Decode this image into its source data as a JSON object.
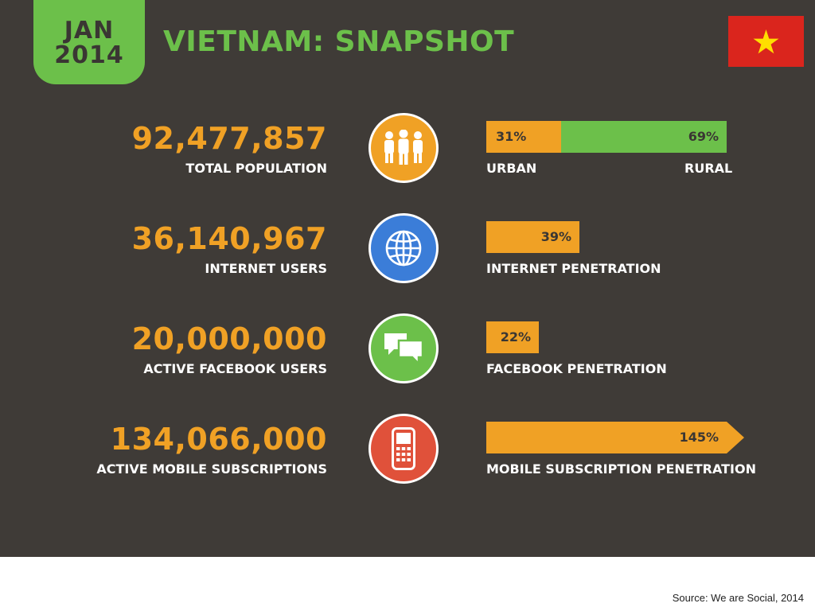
{
  "header": {
    "date_month": "JAN",
    "date_year": "2014",
    "title": "VIETNAM: SNAPSHOT"
  },
  "colors": {
    "background": "#3f3b37",
    "green": "#6cc04a",
    "orange": "#f0a125",
    "blue": "#3b7dd8",
    "red": "#e0513a",
    "flag_red": "#da251d",
    "flag_star": "#ffde00"
  },
  "metrics": [
    {
      "value": "92,477,857",
      "label": "TOTAL POPULATION",
      "icon": "people-icon",
      "icon_color": "#f0a125",
      "split": {
        "left_value": "31%",
        "right_value": "69%",
        "left_label": "URBAN",
        "right_label": "RURAL",
        "left_fraction": 0.31
      }
    },
    {
      "value": "36,140,967",
      "label": "INTERNET USERS",
      "icon": "globe-icon",
      "icon_color": "#3b7dd8",
      "bar": {
        "value_text": "39%",
        "percent": 39,
        "label": "INTERNET PENETRATION"
      }
    },
    {
      "value": "20,000,000",
      "label": "ACTIVE FACEBOOK USERS",
      "icon": "chat-bubbles-icon",
      "icon_color": "#6cc04a",
      "bar": {
        "value_text": "22%",
        "percent": 22,
        "label": "FACEBOOK PENETRATION"
      }
    },
    {
      "value": "134,066,000",
      "label": "ACTIVE MOBILE SUBSCRIPTIONS",
      "icon": "mobile-phone-icon",
      "icon_color": "#e0513a",
      "bar": {
        "value_text": "145%",
        "percent": 145,
        "label": "MOBILE SUBSCRIPTION PENETRATION"
      }
    }
  ],
  "footer": {
    "source": "Source: We are Social, 2014"
  }
}
